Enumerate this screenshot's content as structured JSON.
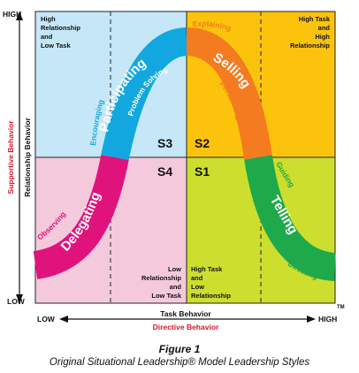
{
  "colors": {
    "q1_fill": "#c5e7f7",
    "q2_fill": "#fcc30c",
    "q3_fill": "#f5c9dc",
    "q4_fill": "#cdde2e",
    "participating": "#12a8df",
    "selling": "#f47b20",
    "delegating": "#e0137d",
    "telling": "#1ea94a",
    "red_label": "#d6192a"
  },
  "axes": {
    "y_high": "HIGH",
    "y_low": "LOW",
    "y_label_red": "Supportive Behavior",
    "y_label_black": "Relationship Behavior",
    "x_low": "LOW",
    "x_high": "HIGH",
    "x_label_black": "Task Behavior",
    "x_label_red": "Directive Behavior",
    "tm": "TM"
  },
  "quadrants": {
    "tl_lines": [
      "High",
      "Relationship",
      "and",
      "Low Task"
    ],
    "tr_lines": [
      "High Task",
      "and",
      "High",
      "Relationship"
    ],
    "bl_lines": [
      "Low",
      "Relationship",
      "and",
      "Low Task"
    ],
    "br_lines": [
      "High Task",
      "and",
      "Low",
      "Relationship"
    ]
  },
  "styles": {
    "s1": "S1",
    "s2": "S2",
    "s3": "S3",
    "s4": "S4"
  },
  "curve": {
    "participating": "Participating",
    "selling": "Selling",
    "delegating": "Delegating",
    "telling": "Telling",
    "explaining": "Explaining",
    "problem_solving": "Problem Solving",
    "encouraging": "Encouraging",
    "persuading": "Persuading",
    "monitoring": "Monitoring",
    "observing": "Observing",
    "guiding": "Guiding",
    "directing": "Directing"
  },
  "caption": {
    "title": "Figure 1",
    "subtitle": "Original Situational Leadership® Model Leadership Styles"
  }
}
